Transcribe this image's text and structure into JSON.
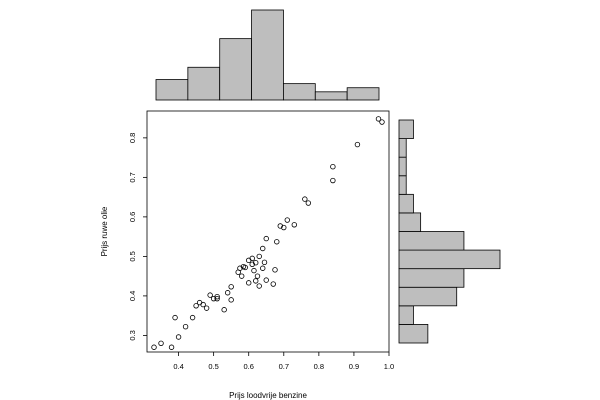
{
  "chart_data": {
    "type": "scatter",
    "title": "",
    "xlabel": "Prijs loodvrije benzine",
    "ylabel": "Prijs ruwe olie",
    "xlim": [
      0.31,
      1.0
    ],
    "ylim": [
      0.258,
      0.868
    ],
    "xticks": [
      0.4,
      0.5,
      0.6,
      0.7,
      0.8,
      0.9,
      1.0
    ],
    "xtick_labels": [
      "0.4",
      "0.5",
      "0.6",
      "0.7",
      "0.8",
      "0.9",
      "1.0"
    ],
    "yticks": [
      0.3,
      0.4,
      0.5,
      0.6,
      0.7,
      0.8
    ],
    "ytick_labels": [
      "0.3",
      "0.4",
      "0.5",
      "0.6",
      "0.7",
      "0.8"
    ],
    "grid": false,
    "marker": "open-circle",
    "colors": {
      "points": "#000000",
      "hist_fill": "#bebebe",
      "hist_stroke": "#000000",
      "frame": "#000000"
    },
    "points": [
      [
        0.33,
        0.27
      ],
      [
        0.35,
        0.28
      ],
      [
        0.38,
        0.27
      ],
      [
        0.39,
        0.345
      ],
      [
        0.4,
        0.296
      ],
      [
        0.42,
        0.322
      ],
      [
        0.44,
        0.345
      ],
      [
        0.45,
        0.375
      ],
      [
        0.46,
        0.383
      ],
      [
        0.47,
        0.378
      ],
      [
        0.48,
        0.369
      ],
      [
        0.49,
        0.402
      ],
      [
        0.5,
        0.393
      ],
      [
        0.51,
        0.398
      ],
      [
        0.51,
        0.393
      ],
      [
        0.53,
        0.365
      ],
      [
        0.54,
        0.408
      ],
      [
        0.55,
        0.423
      ],
      [
        0.55,
        0.39
      ],
      [
        0.57,
        0.46
      ],
      [
        0.575,
        0.47
      ],
      [
        0.58,
        0.45
      ],
      [
        0.585,
        0.474
      ],
      [
        0.59,
        0.472
      ],
      [
        0.6,
        0.49
      ],
      [
        0.6,
        0.433
      ],
      [
        0.61,
        0.48
      ],
      [
        0.61,
        0.495
      ],
      [
        0.615,
        0.464
      ],
      [
        0.62,
        0.484
      ],
      [
        0.62,
        0.438
      ],
      [
        0.625,
        0.45
      ],
      [
        0.63,
        0.425
      ],
      [
        0.63,
        0.5
      ],
      [
        0.64,
        0.52
      ],
      [
        0.64,
        0.47
      ],
      [
        0.645,
        0.485
      ],
      [
        0.65,
        0.545
      ],
      [
        0.65,
        0.44
      ],
      [
        0.67,
        0.43
      ],
      [
        0.675,
        0.466
      ],
      [
        0.68,
        0.537
      ],
      [
        0.69,
        0.577
      ],
      [
        0.7,
        0.573
      ],
      [
        0.71,
        0.592
      ],
      [
        0.73,
        0.58
      ],
      [
        0.76,
        0.645
      ],
      [
        0.77,
        0.635
      ],
      [
        0.84,
        0.727
      ],
      [
        0.84,
        0.692
      ],
      [
        0.91,
        0.783
      ],
      [
        0.97,
        0.848
      ],
      [
        0.98,
        0.84
      ]
    ],
    "x_histogram": {
      "bin_edges": [
        0.3,
        0.4,
        0.5,
        0.6,
        0.7,
        0.8,
        0.9,
        1.0
      ],
      "counts": [
        5,
        8,
        15,
        22,
        4,
        2,
        3
      ]
    },
    "y_histogram": {
      "bin_edges": [
        0.25,
        0.3,
        0.35,
        0.4,
        0.45,
        0.5,
        0.55,
        0.6,
        0.65,
        0.7,
        0.75,
        0.8,
        0.85
      ],
      "counts": [
        4,
        2,
        8,
        9,
        14,
        9,
        3,
        2,
        1,
        1,
        1,
        2
      ]
    }
  }
}
